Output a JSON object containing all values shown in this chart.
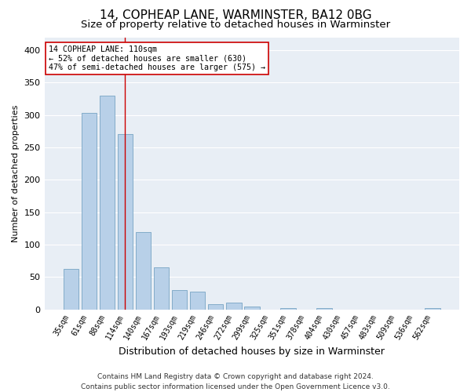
{
  "title": "14, COPHEAP LANE, WARMINSTER, BA12 0BG",
  "subtitle": "Size of property relative to detached houses in Warminster",
  "xlabel": "Distribution of detached houses by size in Warminster",
  "ylabel": "Number of detached properties",
  "categories": [
    "35sqm",
    "61sqm",
    "88sqm",
    "114sqm",
    "140sqm",
    "167sqm",
    "193sqm",
    "219sqm",
    "246sqm",
    "272sqm",
    "299sqm",
    "325sqm",
    "351sqm",
    "378sqm",
    "404sqm",
    "430sqm",
    "457sqm",
    "483sqm",
    "509sqm",
    "536sqm",
    "562sqm"
  ],
  "values": [
    62,
    303,
    330,
    270,
    119,
    65,
    30,
    27,
    8,
    11,
    4,
    0,
    2,
    0,
    2,
    0,
    0,
    0,
    0,
    0,
    2
  ],
  "bar_color": "#b8d0e8",
  "bar_edge_color": "#6699bb",
  "red_line_x": 3.0,
  "red_line_color": "#cc0000",
  "annotation_text": "14 COPHEAP LANE: 110sqm\n← 52% of detached houses are smaller (630)\n47% of semi-detached houses are larger (575) →",
  "annotation_box_color": "#ffffff",
  "annotation_box_edge_color": "#cc0000",
  "ylim": [
    0,
    420
  ],
  "yticks": [
    0,
    50,
    100,
    150,
    200,
    250,
    300,
    350,
    400
  ],
  "background_color": "#e8eef5",
  "grid_color": "#ffffff",
  "footer_line1": "Contains HM Land Registry data © Crown copyright and database right 2024.",
  "footer_line2": "Contains public sector information licensed under the Open Government Licence v3.0.",
  "title_fontsize": 11,
  "subtitle_fontsize": 9.5,
  "xlabel_fontsize": 9,
  "ylabel_fontsize": 8,
  "footer_fontsize": 6.5,
  "tick_fontsize": 7,
  "ytick_fontsize": 8
}
